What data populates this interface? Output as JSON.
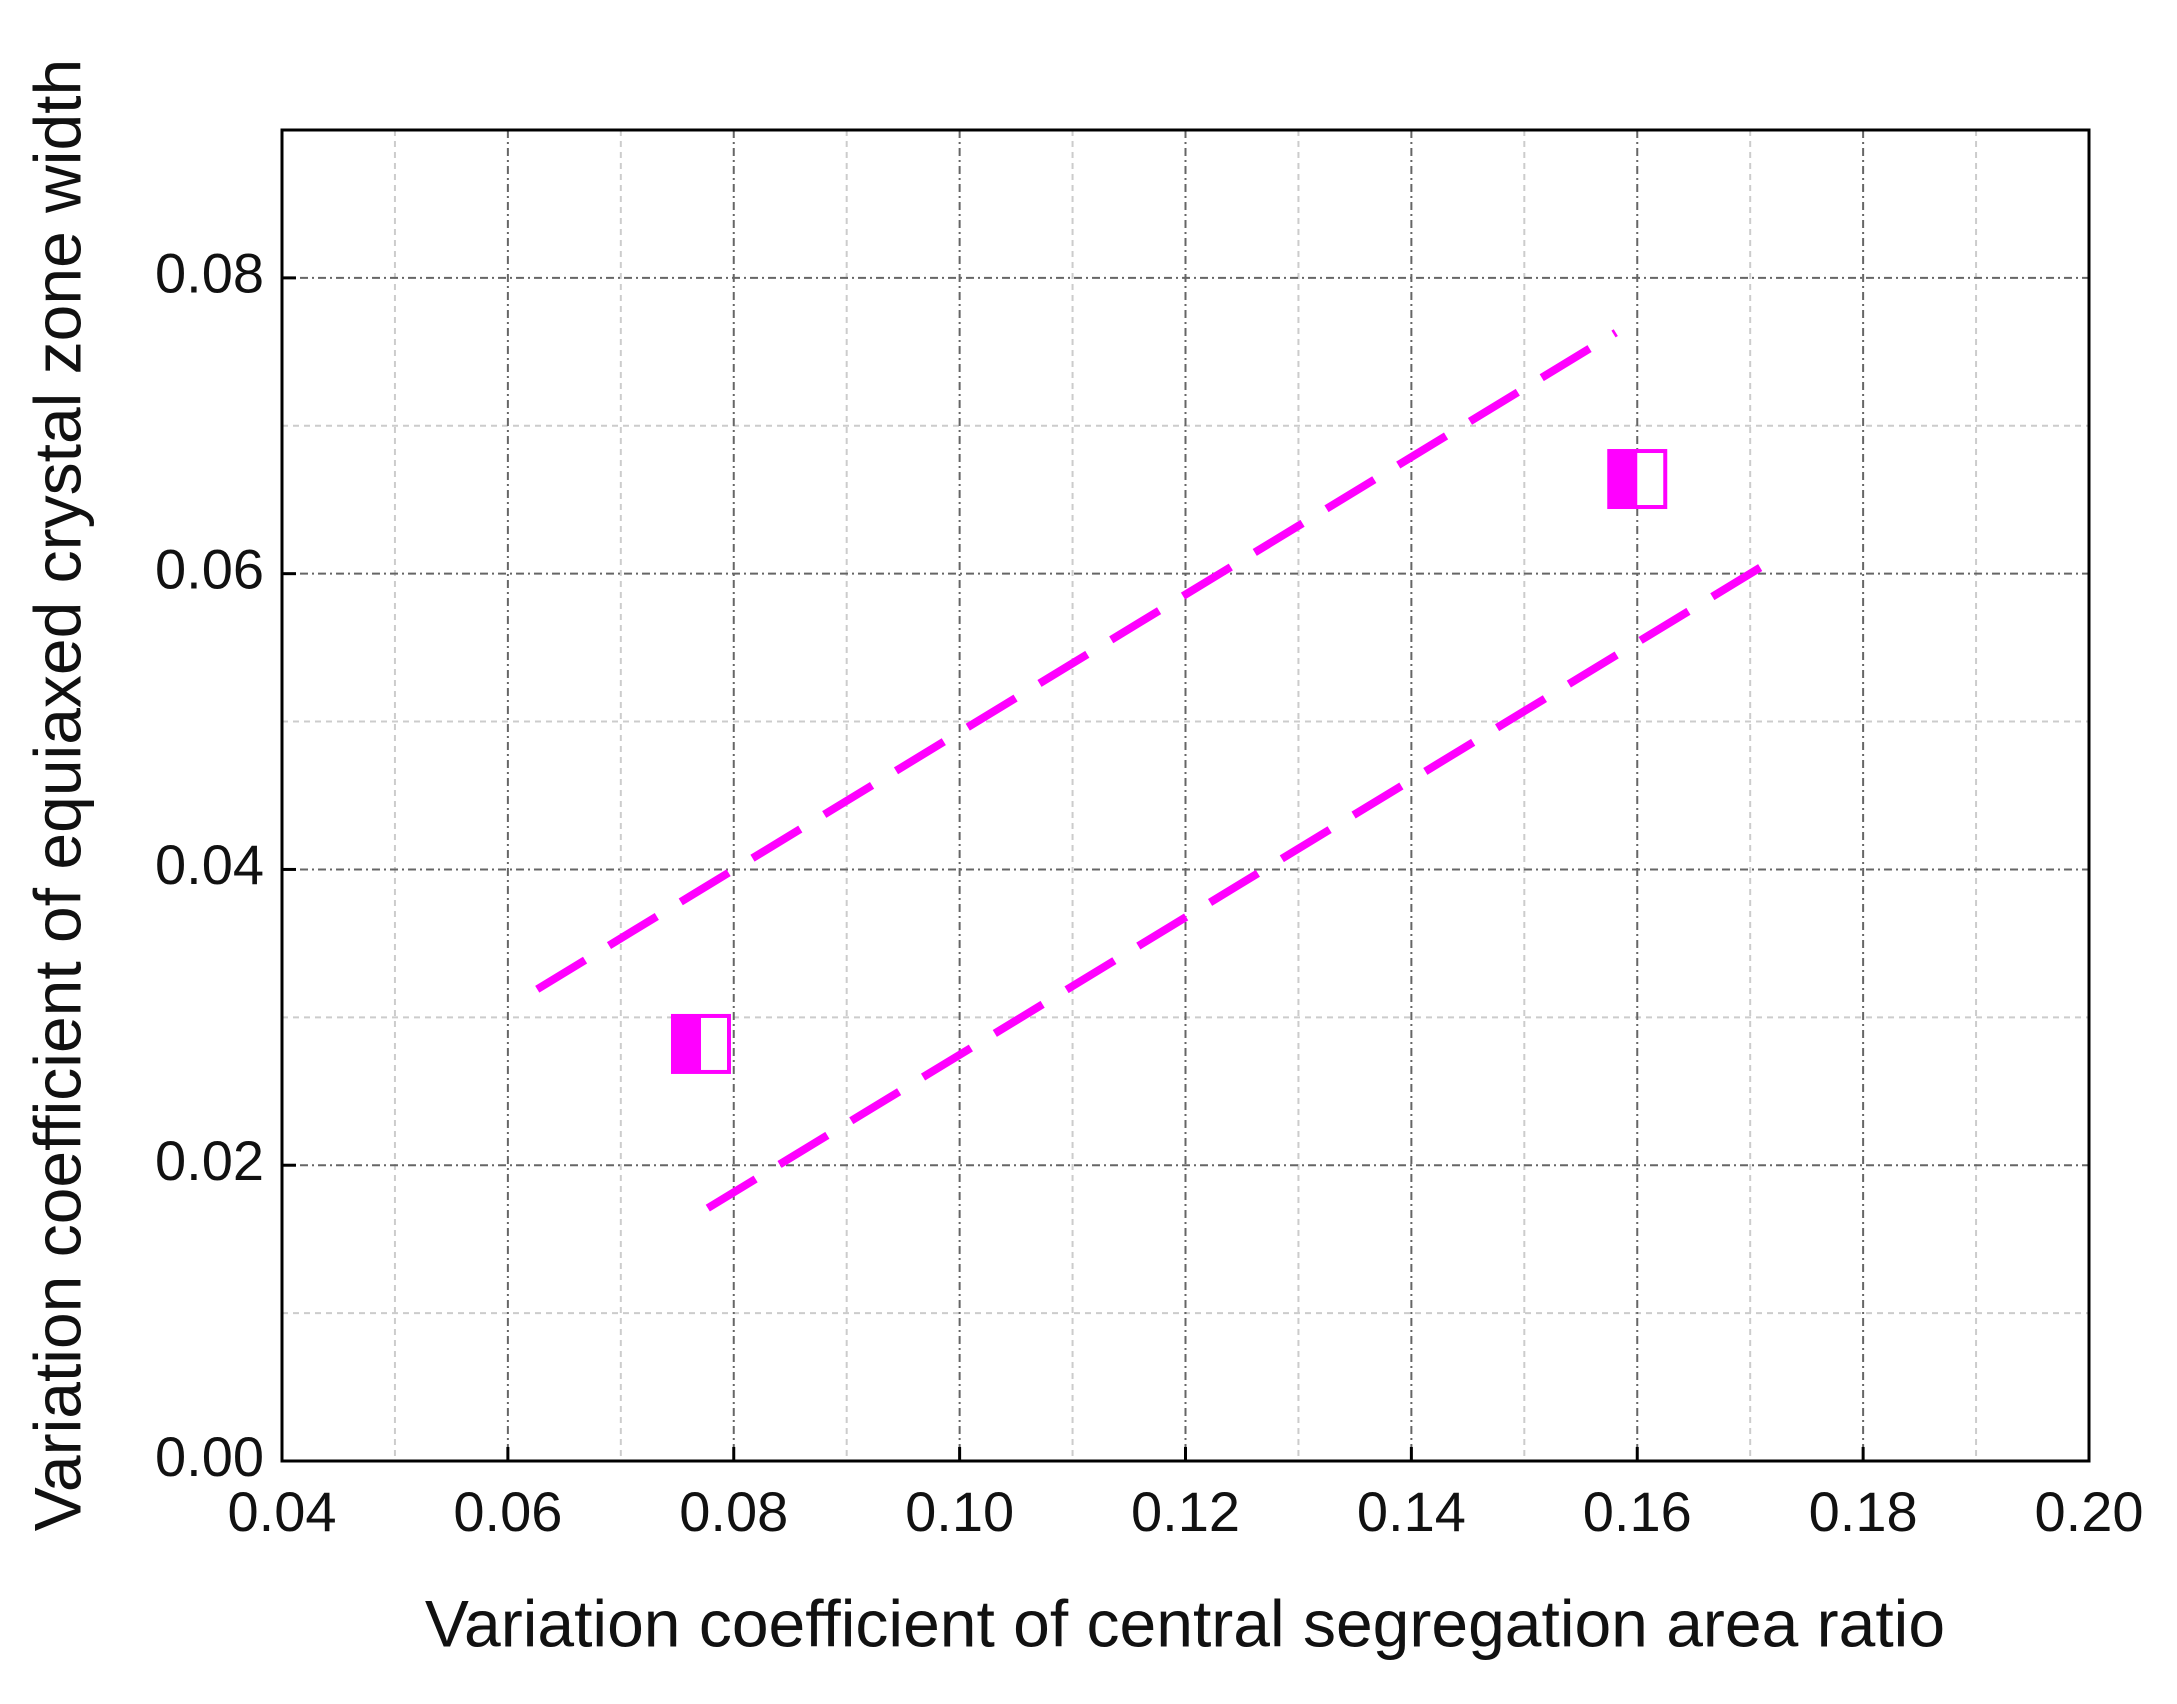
{
  "chart_data": {
    "type": "scatter",
    "xlabel": "Variation coefficient of central segregation area ratio",
    "ylabel": "Variation coefficient of equiaxed crystal zone width",
    "xlim": [
      0.04,
      0.2
    ],
    "ylim": [
      0,
      0.09
    ],
    "xticks": [
      0.04,
      0.06,
      0.08,
      {
        "value": 0.1,
        "label": "0.10"
      },
      0.12,
      0.14,
      0.16,
      0.18,
      {
        "value": 0.2,
        "label": "0.20"
      }
    ],
    "yticks": [
      {
        "value": 0,
        "label": "0.00"
      },
      0.02,
      0.04,
      0.06,
      0.08
    ],
    "xminor": [
      0.05,
      0.07,
      0.09,
      0.11,
      0.13,
      0.15,
      0.17,
      0.19
    ],
    "yminor": [
      0.01,
      0.03,
      0.05,
      0.07,
      0.09
    ],
    "grid": true,
    "points": {
      "x": [
        0.0771,
        0.16
      ],
      "y": [
        0.0282,
        0.0664
      ],
      "color": "#ff00ff",
      "marker": "half-filled-square"
    },
    "lines": [
      {
        "x": [
          0.0626,
          0.1581
        ],
        "y": [
          0.0319,
          0.0763
        ],
        "color": "#ff00ff",
        "style": "dashed"
      },
      {
        "x": [
          0.0777,
          0.1728
        ],
        "y": [
          0.0171,
          0.0613
        ],
        "color": "#ff00ff",
        "style": "dashed"
      }
    ]
  }
}
